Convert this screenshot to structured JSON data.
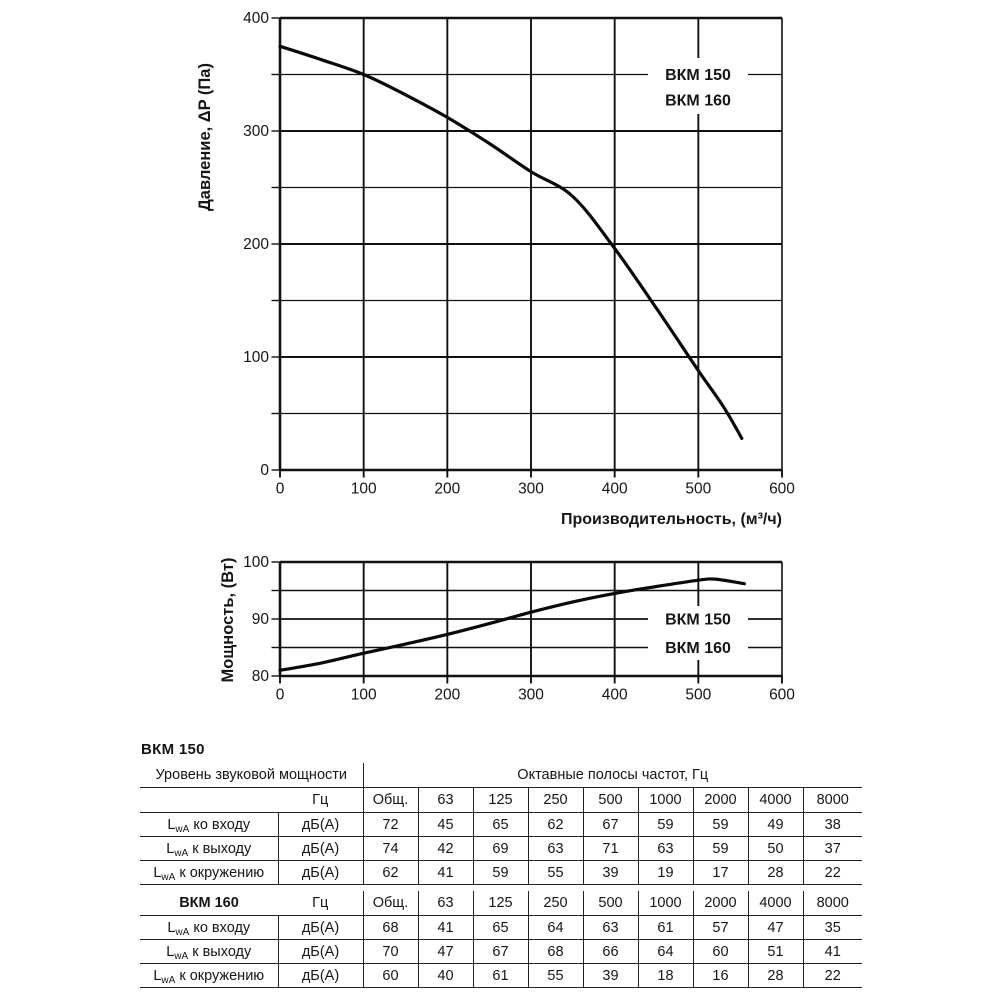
{
  "page": {
    "background": "#ffffff",
    "ink": "#161616",
    "grid_color": "#111111",
    "curve_color": "#0a0a0a"
  },
  "chart_data": [
    {
      "type": "line",
      "name": "pressure-curve-chart",
      "ylabel": "Давление, ΔP (Па)",
      "xlabel": "Производительность, (м³/ч)",
      "legend": [
        "ВКМ 150",
        "ВКМ 160"
      ],
      "legend_position": "top-right-inside",
      "xlim": [
        0,
        600
      ],
      "ylim": [
        0,
        400
      ],
      "x_ticks": [
        0,
        100,
        200,
        300,
        400,
        500,
        600
      ],
      "y_ticks": [
        0,
        100,
        200,
        300,
        400
      ],
      "y_minor_step": 50,
      "grid": true,
      "series": [
        {
          "name": "ВКМ 150 / ВКМ 160",
          "points": [
            [
              0,
              375
            ],
            [
              50,
              363
            ],
            [
              100,
              350
            ],
            [
              150,
              332
            ],
            [
              200,
              312
            ],
            [
              250,
              289
            ],
            [
              300,
              264
            ],
            [
              350,
              242
            ],
            [
              400,
              196
            ],
            [
              450,
              143
            ],
            [
              500,
              88
            ],
            [
              530,
              56
            ],
            [
              552,
              28
            ]
          ]
        }
      ]
    },
    {
      "type": "line",
      "name": "power-curve-chart",
      "ylabel": "Мощность, (Вт)",
      "xlabel": "",
      "legend": [
        "ВКМ 150",
        "ВКМ 160"
      ],
      "legend_position": "right-inside",
      "xlim": [
        0,
        600
      ],
      "ylim": [
        80,
        100
      ],
      "x_ticks": [
        0,
        100,
        200,
        300,
        400,
        500,
        600
      ],
      "y_ticks": [
        80,
        90,
        100
      ],
      "y_minor_step": 5,
      "grid": true,
      "series": [
        {
          "name": "ВКМ 150 / ВКМ 160",
          "points": [
            [
              0,
              81
            ],
            [
              50,
              82.3
            ],
            [
              100,
              84
            ],
            [
              150,
              85.6
            ],
            [
              200,
              87.3
            ],
            [
              250,
              89.2
            ],
            [
              300,
              91.2
            ],
            [
              350,
              93
            ],
            [
              400,
              94.5
            ],
            [
              450,
              95.7
            ],
            [
              500,
              96.8
            ],
            [
              520,
              97
            ],
            [
              555,
              96.2
            ]
          ]
        }
      ]
    },
    {
      "type": "table",
      "title": "ВКМ 150",
      "group_headers": {
        "left": "Уровень звуковой мощности",
        "right": "Октавные полосы частот, Гц"
      },
      "unit_header": "Гц",
      "columns": [
        "Общ.",
        "63",
        "125",
        "250",
        "500",
        "1000",
        "2000",
        "4000",
        "8000"
      ],
      "rows": [
        {
          "label_prefix": "L",
          "label_sub": "wA",
          "label_text": " ко входу",
          "unit": "дБ(А)",
          "values": [
            72,
            45,
            65,
            62,
            67,
            59,
            59,
            49,
            38
          ]
        },
        {
          "label_prefix": "L",
          "label_sub": "wA",
          "label_text": " к выходу",
          "unit": "дБ(А)",
          "values": [
            74,
            42,
            69,
            63,
            71,
            63,
            59,
            50,
            37
          ]
        },
        {
          "label_prefix": "L",
          "label_sub": "wA",
          "label_text": " к окружению",
          "unit": "дБ(А)",
          "values": [
            62,
            41,
            59,
            55,
            39,
            19,
            17,
            28,
            22
          ]
        }
      ]
    },
    {
      "type": "table",
      "title": "ВКМ 160",
      "unit_header": "Гц",
      "columns": [
        "Общ.",
        "63",
        "125",
        "250",
        "500",
        "1000",
        "2000",
        "4000",
        "8000"
      ],
      "rows": [
        {
          "label_prefix": "L",
          "label_sub": "wA",
          "label_text": " ко входу",
          "unit": "дБ(А)",
          "values": [
            68,
            41,
            65,
            64,
            63,
            61,
            57,
            47,
            35
          ]
        },
        {
          "label_prefix": "L",
          "label_sub": "wA",
          "label_text": " к выходу",
          "unit": "дБ(А)",
          "values": [
            70,
            47,
            67,
            68,
            66,
            64,
            60,
            51,
            41
          ]
        },
        {
          "label_prefix": "L",
          "label_sub": "wA",
          "label_text": " к окружению",
          "unit": "дБ(А)",
          "values": [
            60,
            40,
            61,
            55,
            39,
            18,
            16,
            28,
            22
          ]
        }
      ]
    }
  ]
}
